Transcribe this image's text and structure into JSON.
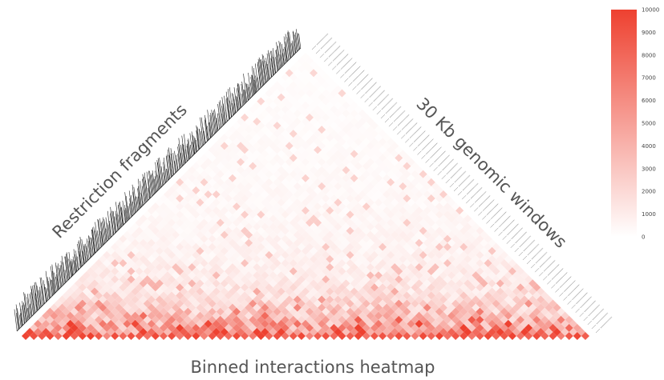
{
  "chart_data": {
    "type": "heatmap",
    "title": "",
    "bottom_label": "Binned interactions heatmap",
    "left_label": "Restriction fragments",
    "right_label": "30 Kb genomic windows",
    "colorbar": {
      "min": 0,
      "max": 10000,
      "ticks": [
        "10000",
        "9000",
        "8000",
        "7000",
        "6000",
        "5000",
        "4000",
        "3000",
        "2000",
        "1000",
        "0"
      ],
      "color_low": "#ffffff",
      "color_high": "#ee4130"
    },
    "bins": 70,
    "diagonal_pattern": [
      9800,
      9200,
      8700,
      9500,
      7600,
      9900,
      8300,
      9700,
      10000,
      8800,
      6200,
      9400,
      7900,
      9100,
      8600,
      7300,
      9600,
      8100,
      9300,
      7000,
      8900,
      9800,
      6600,
      9000,
      8400,
      7700,
      9500,
      8200,
      6900,
      9900,
      8000,
      9200,
      7500,
      8700,
      9600,
      6400,
      8500,
      9100,
      7800,
      9400,
      8300,
      9700,
      7200,
      8800,
      9000,
      7600,
      9300,
      8600,
      6800,
      9500,
      8100,
      9800,
      7400,
      8900,
      9200,
      7100,
      8400,
      9600,
      7900,
      8700,
      9900,
      7300,
      8200,
      9400,
      8000,
      9100,
      6700,
      8800,
      9700,
      8500
    ]
  }
}
